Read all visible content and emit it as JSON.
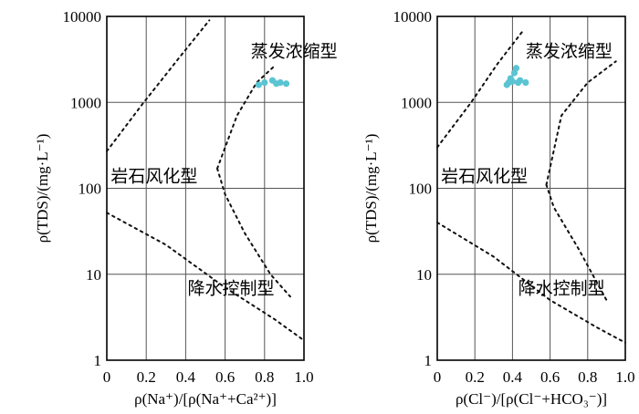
{
  "chart_data": [
    {
      "type": "scatter",
      "id": "left",
      "xlabel": "ρ(Na⁺)/[ρ(Na⁺+Ca²⁺)]",
      "ylabel": "ρ(TDS)/(mg·L⁻¹)",
      "xlim": [
        0,
        1.0
      ],
      "ylim": [
        1,
        10000
      ],
      "yscale": "log",
      "grid": true,
      "x_ticks": [
        "0",
        "0.2",
        "0.4",
        "0.6",
        "0.8",
        "1.0"
      ],
      "y_ticks": [
        "1",
        "10",
        "100",
        "1000",
        "10000"
      ],
      "regions": [
        {
          "label": "蒸发浓缩型",
          "x": 0.73,
          "y": 4000
        },
        {
          "label": "岩石风化型",
          "x": 0.02,
          "y": 140
        },
        {
          "label": "降水控制型",
          "x": 0.41,
          "y": 7
        }
      ],
      "boundaries": [
        [
          [
            0,
            270
          ],
          [
            0.18,
            950
          ],
          [
            0.38,
            3600
          ],
          [
            0.52,
            9000
          ]
        ],
        [
          [
            0.56,
            170
          ],
          [
            0.66,
            700
          ],
          [
            0.76,
            1700
          ],
          [
            0.85,
            2650
          ]
        ],
        [
          [
            0.56,
            170
          ],
          [
            0.6,
            85
          ],
          [
            0.7,
            30
          ],
          [
            0.83,
            10
          ],
          [
            0.93,
            5.5
          ]
        ],
        [
          [
            0,
            52
          ],
          [
            0.3,
            22
          ],
          [
            0.6,
            7
          ],
          [
            0.85,
            3
          ],
          [
            1.0,
            1.7
          ]
        ]
      ],
      "series": [
        {
          "color": "#5bc4d2",
          "x": [
            0.77,
            0.8,
            0.84,
            0.86,
            0.88,
            0.91
          ],
          "y": [
            1600,
            1700,
            1800,
            1650,
            1700,
            1650
          ]
        }
      ]
    },
    {
      "type": "scatter",
      "id": "right",
      "xlabel": "ρ(Cl⁻)/[ρ(Cl⁻+HCO₃⁻)]",
      "ylabel": "ρ(TDS)/(mg·L⁻¹)",
      "xlim": [
        0,
        1.0
      ],
      "ylim": [
        1,
        10000
      ],
      "yscale": "log",
      "grid": true,
      "x_ticks": [
        "0",
        "0.2",
        "0.4",
        "0.6",
        "0.8",
        "1.0"
      ],
      "y_ticks": [
        "1",
        "10",
        "100",
        "1000",
        "10000"
      ],
      "regions": [
        {
          "label": "蒸发浓缩型",
          "x": 0.47,
          "y": 4000
        },
        {
          "label": "岩石风化型",
          "x": 0.02,
          "y": 140
        },
        {
          "label": "降水控制型",
          "x": 0.43,
          "y": 7
        }
      ],
      "boundaries": [
        [
          [
            0,
            300
          ],
          [
            0.18,
            1000
          ],
          [
            0.32,
            2800
          ],
          [
            0.46,
            7000
          ]
        ],
        [
          [
            0.58,
            110
          ],
          [
            0.66,
            700
          ],
          [
            0.8,
            1700
          ],
          [
            0.95,
            3000
          ]
        ],
        [
          [
            0.58,
            110
          ],
          [
            0.62,
            60
          ],
          [
            0.75,
            20
          ],
          [
            0.9,
            5
          ]
        ],
        [
          [
            0,
            40
          ],
          [
            0.3,
            16
          ],
          [
            0.6,
            5
          ],
          [
            0.85,
            2.4
          ],
          [
            1.0,
            1.6
          ]
        ]
      ],
      "series": [
        {
          "color": "#5bc4d2",
          "x": [
            0.37,
            0.38,
            0.39,
            0.4,
            0.41,
            0.42,
            0.43,
            0.44,
            0.47
          ],
          "y": [
            1600,
            1700,
            1900,
            1750,
            2200,
            2500,
            1700,
            1800,
            1700
          ]
        }
      ]
    }
  ]
}
